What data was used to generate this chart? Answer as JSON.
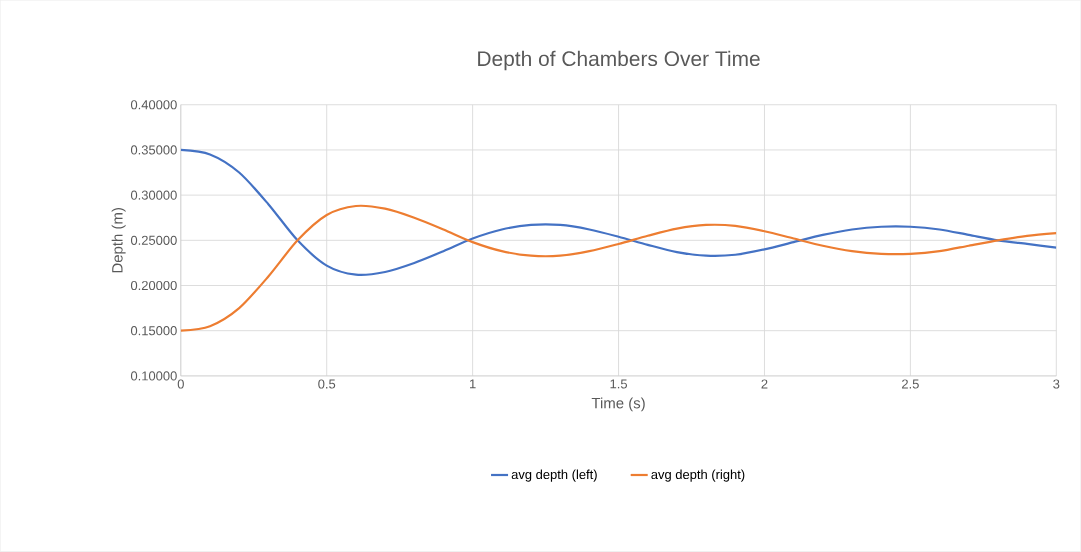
{
  "chart_data": {
    "type": "line",
    "title": "Depth of Chambers Over Time",
    "xlabel": "Time (s)",
    "ylabel": "Depth (m)",
    "x": [
      0,
      0.1,
      0.2,
      0.3,
      0.4,
      0.5,
      0.6,
      0.7,
      0.8,
      0.9,
      1.0,
      1.1,
      1.2,
      1.3,
      1.4,
      1.5,
      1.6,
      1.7,
      1.8,
      1.9,
      2.0,
      2.1,
      2.2,
      2.3,
      2.4,
      2.5,
      2.6,
      2.7,
      2.8,
      2.9,
      3.0
    ],
    "series": [
      {
        "name": "avg depth (left)",
        "color": "#4472c4",
        "values": [
          0.35,
          0.345,
          0.325,
          0.29,
          0.25,
          0.222,
          0.212,
          0.215,
          0.225,
          0.238,
          0.252,
          0.262,
          0.267,
          0.267,
          0.262,
          0.254,
          0.245,
          0.237,
          0.233,
          0.234,
          0.24,
          0.248,
          0.256,
          0.262,
          0.265,
          0.265,
          0.262,
          0.256,
          0.25,
          0.246,
          0.242
        ]
      },
      {
        "name": "avg depth (right)",
        "color": "#ed7d31",
        "values": [
          0.15,
          0.155,
          0.175,
          0.21,
          0.25,
          0.278,
          0.288,
          0.285,
          0.275,
          0.262,
          0.248,
          0.238,
          0.233,
          0.233,
          0.238,
          0.246,
          0.255,
          0.263,
          0.267,
          0.266,
          0.26,
          0.252,
          0.244,
          0.238,
          0.235,
          0.235,
          0.238,
          0.244,
          0.25,
          0.255,
          0.258
        ]
      }
    ],
    "xlim": [
      0,
      3
    ],
    "xticks": [
      0,
      0.5,
      1,
      1.5,
      2,
      2.5,
      3
    ],
    "ylim": [
      0.1,
      0.4
    ],
    "yticks": [
      {
        "value": 0.1,
        "label": "0.10000"
      },
      {
        "value": 0.15,
        "label": "0.15000"
      },
      {
        "value": 0.2,
        "label": "0.20000"
      },
      {
        "value": 0.25,
        "label": "0.25000"
      },
      {
        "value": 0.3,
        "label": "0.30000"
      },
      {
        "value": 0.35,
        "label": "0.35000"
      },
      {
        "value": 0.4,
        "label": "0.40000"
      }
    ],
    "grid": true,
    "legend": "bottom",
    "marker": "none",
    "line_style": "solid"
  }
}
